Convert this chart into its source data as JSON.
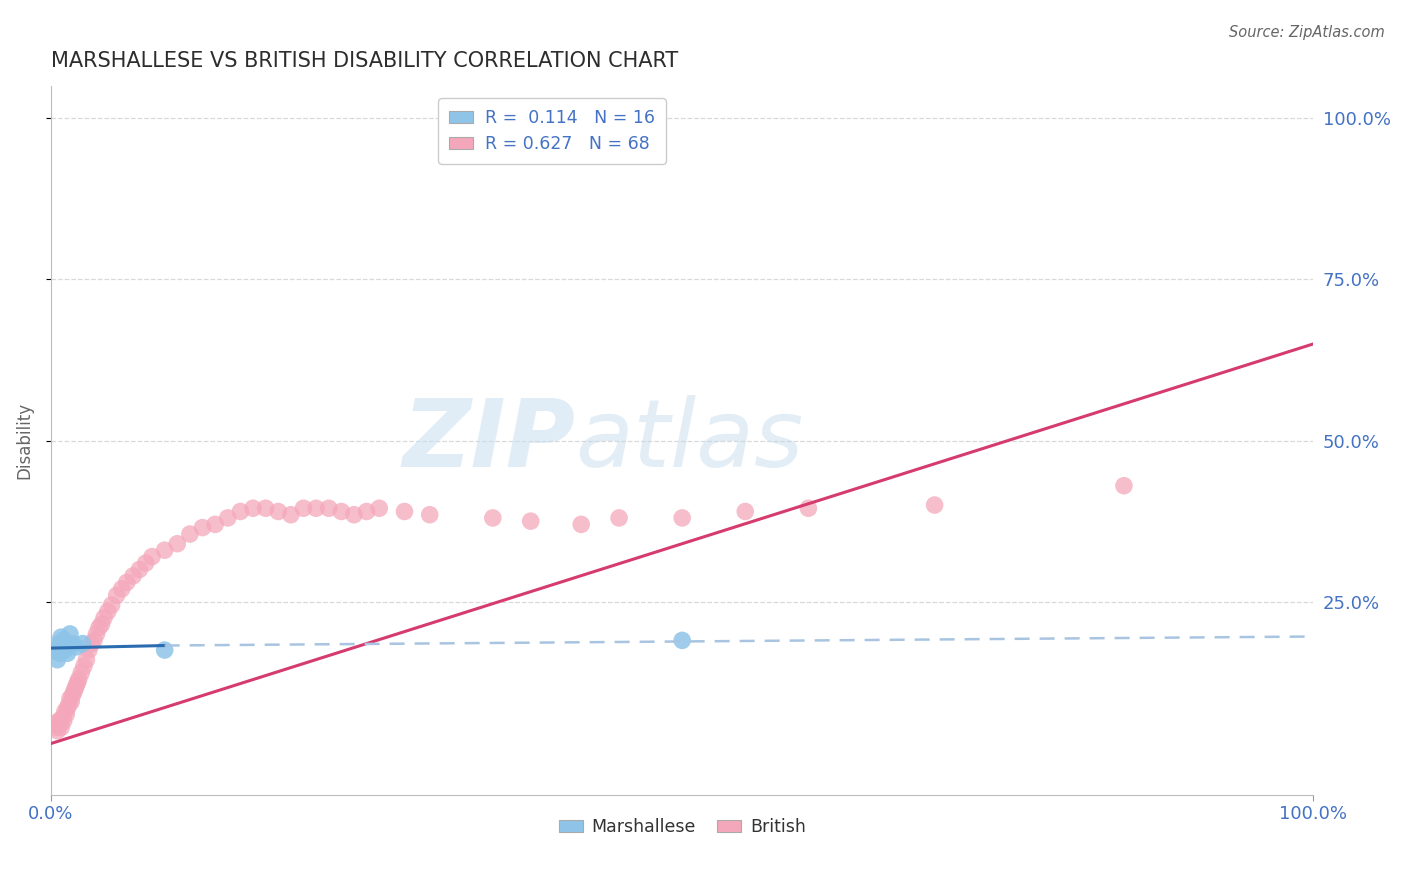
{
  "title": "MARSHALLESE VS BRITISH DISABILITY CORRELATION CHART",
  "source": "Source: ZipAtlas.com",
  "ylabel": "Disability",
  "xlim": [
    0.0,
    1.0
  ],
  "ylim": [
    -0.05,
    1.05
  ],
  "x_tick_labels": [
    "0.0%",
    "100.0%"
  ],
  "y_tick_labels": [
    "25.0%",
    "50.0%",
    "75.0%",
    "100.0%"
  ],
  "y_tick_positions": [
    0.25,
    0.5,
    0.75,
    1.0
  ],
  "marshallese_R": 0.114,
  "marshallese_N": 16,
  "british_R": 0.627,
  "british_N": 68,
  "marshallese_color": "#8ec4e8",
  "british_color": "#f4a7ba",
  "marshallese_line_color": "#2b6cb0",
  "british_line_color": "#d63b6e",
  "regression_line_ext_color": "#a8c4e0",
  "watermark_zip": "ZIP",
  "watermark_atlas": "atlas",
  "title_color": "#2d2d2d",
  "axis_color": "#4472c4",
  "grid_color": "#d0d0d0",
  "background_color": "#ffffff",
  "marshallese_points_x": [
    0.003,
    0.005,
    0.006,
    0.007,
    0.008,
    0.009,
    0.01,
    0.011,
    0.012,
    0.013,
    0.015,
    0.017,
    0.02,
    0.025,
    0.09,
    0.5
  ],
  "marshallese_points_y": [
    0.175,
    0.16,
    0.185,
    0.17,
    0.195,
    0.18,
    0.19,
    0.175,
    0.185,
    0.17,
    0.2,
    0.185,
    0.18,
    0.185,
    0.175,
    0.19
  ],
  "british_points_x": [
    0.003,
    0.004,
    0.005,
    0.006,
    0.007,
    0.008,
    0.009,
    0.01,
    0.011,
    0.012,
    0.013,
    0.014,
    0.015,
    0.016,
    0.017,
    0.018,
    0.019,
    0.02,
    0.021,
    0.022,
    0.024,
    0.026,
    0.028,
    0.03,
    0.032,
    0.034,
    0.036,
    0.038,
    0.04,
    0.042,
    0.045,
    0.048,
    0.052,
    0.056,
    0.06,
    0.065,
    0.07,
    0.075,
    0.08,
    0.09,
    0.1,
    0.11,
    0.12,
    0.13,
    0.14,
    0.15,
    0.16,
    0.17,
    0.18,
    0.19,
    0.2,
    0.21,
    0.22,
    0.23,
    0.24,
    0.25,
    0.26,
    0.28,
    0.3,
    0.35,
    0.38,
    0.42,
    0.45,
    0.5,
    0.55,
    0.6,
    0.7,
    0.85
  ],
  "british_points_y": [
    0.06,
    0.055,
    0.05,
    0.065,
    0.06,
    0.055,
    0.07,
    0.065,
    0.08,
    0.075,
    0.085,
    0.09,
    0.1,
    0.095,
    0.105,
    0.11,
    0.115,
    0.12,
    0.125,
    0.13,
    0.14,
    0.15,
    0.16,
    0.175,
    0.185,
    0.19,
    0.2,
    0.21,
    0.215,
    0.225,
    0.235,
    0.245,
    0.26,
    0.27,
    0.28,
    0.29,
    0.3,
    0.31,
    0.32,
    0.33,
    0.34,
    0.355,
    0.365,
    0.37,
    0.38,
    0.39,
    0.395,
    0.395,
    0.39,
    0.385,
    0.395,
    0.395,
    0.395,
    0.39,
    0.385,
    0.39,
    0.395,
    0.39,
    0.385,
    0.38,
    0.375,
    0.37,
    0.38,
    0.38,
    0.39,
    0.395,
    0.4,
    0.43
  ]
}
